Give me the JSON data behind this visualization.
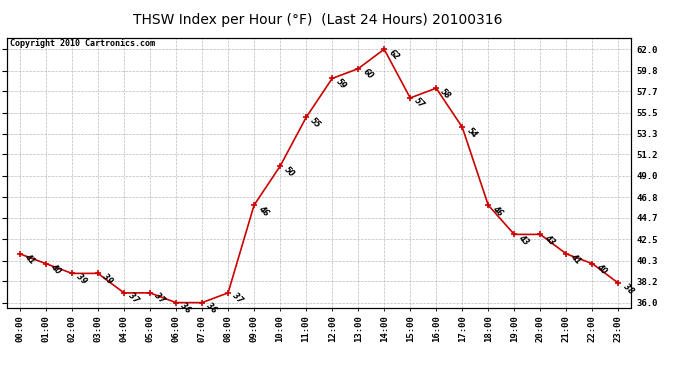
{
  "title": "THSW Index per Hour (°F)  (Last 24 Hours) 20100316",
  "copyright": "Copyright 2010 Cartronics.com",
  "hours": [
    0,
    1,
    2,
    3,
    4,
    5,
    6,
    7,
    8,
    9,
    10,
    11,
    12,
    13,
    14,
    15,
    16,
    17,
    18,
    19,
    20,
    21,
    22,
    23
  ],
  "values": [
    41,
    40,
    39,
    39,
    37,
    37,
    36,
    36,
    37,
    46,
    50,
    55,
    59,
    60,
    62,
    57,
    58,
    54,
    46,
    43,
    43,
    41,
    40,
    38
  ],
  "hour_labels": [
    "00:00",
    "01:00",
    "02:00",
    "03:00",
    "04:00",
    "05:00",
    "06:00",
    "07:00",
    "08:00",
    "09:00",
    "10:00",
    "11:00",
    "12:00",
    "13:00",
    "14:00",
    "15:00",
    "16:00",
    "17:00",
    "18:00",
    "19:00",
    "20:00",
    "21:00",
    "22:00",
    "23:00"
  ],
  "yticks": [
    36.0,
    38.2,
    40.3,
    42.5,
    44.7,
    46.8,
    49.0,
    51.2,
    53.3,
    55.5,
    57.7,
    59.8,
    62.0
  ],
  "ylim": [
    35.5,
    63.2
  ],
  "line_color": "#cc0000",
  "marker_color": "#cc0000",
  "grid_color": "#aaaaaa",
  "bg_color": "#ffffff",
  "plot_bg_color": "#ffffff",
  "title_fontsize": 10,
  "label_fontsize": 6.5,
  "annotation_fontsize": 5.5,
  "copyright_fontsize": 6
}
